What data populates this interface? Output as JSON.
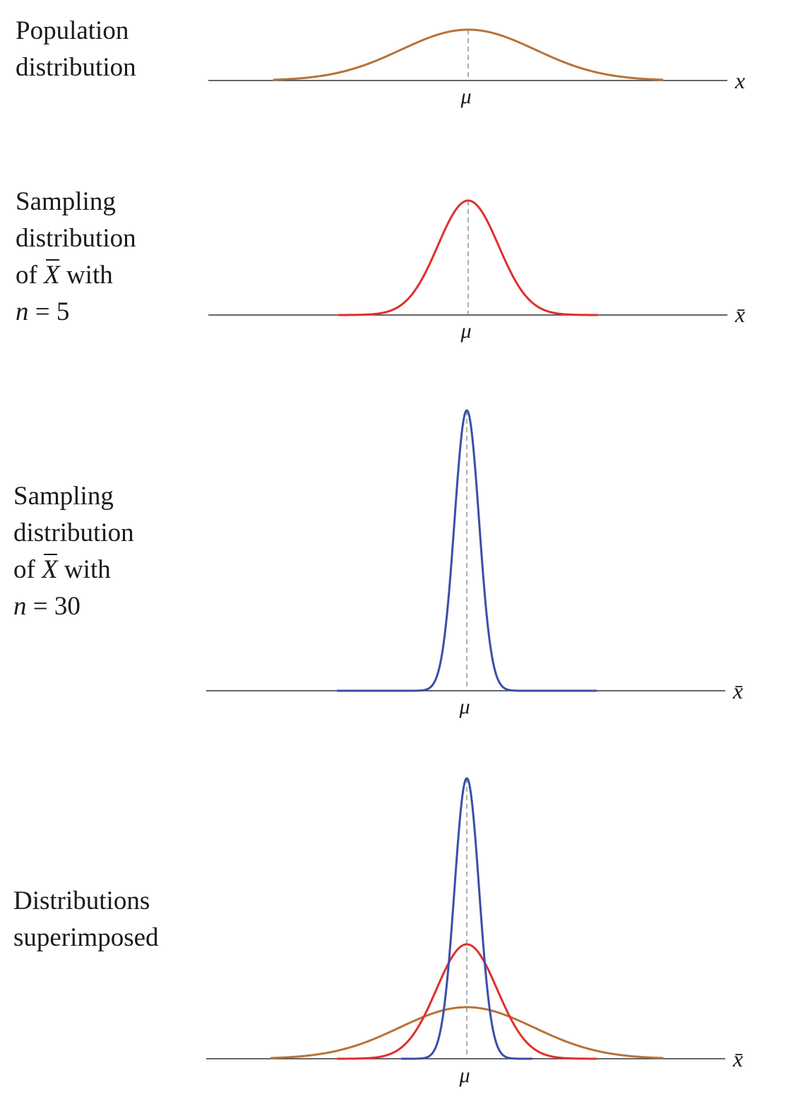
{
  "panels": [
    {
      "id": "population",
      "label_lines": [
        "Population",
        "distribution"
      ],
      "axis_label": "x",
      "center_label": "μ",
      "curves": [
        "population"
      ]
    },
    {
      "id": "n5",
      "label_lines": [
        "Sampling",
        "distribution"
      ],
      "label_of": "of",
      "label_var": "X",
      "label_with": "with",
      "label_n_var": "n",
      "label_n_eq": "= 5",
      "axis_label": "x̄",
      "center_label": "μ",
      "curves": [
        "n5"
      ]
    },
    {
      "id": "n30",
      "label_lines": [
        "Sampling",
        "distribution"
      ],
      "label_of": "of",
      "label_var": "X",
      "label_with": "with",
      "label_n_var": "n",
      "label_n_eq": "= 30",
      "axis_label": "x̄",
      "center_label": "μ",
      "curves": [
        "n30"
      ]
    },
    {
      "id": "superimposed",
      "label_lines": [
        "Distributions",
        "superimposed"
      ],
      "axis_label": "x̄",
      "center_label": "μ",
      "curves": [
        "population",
        "n5",
        "n30"
      ]
    }
  ],
  "curve_styles": {
    "population": {
      "color": "#b5733a",
      "relative_sd": 1.0
    },
    "n5": {
      "color": "#e0302c",
      "relative_sd": 0.447
    },
    "n30": {
      "color": "#3a4fa8",
      "relative_sd": 0.183
    }
  },
  "colors": {
    "axis": "#333333",
    "center_line": "#777777",
    "text": "#1a1a1a"
  }
}
